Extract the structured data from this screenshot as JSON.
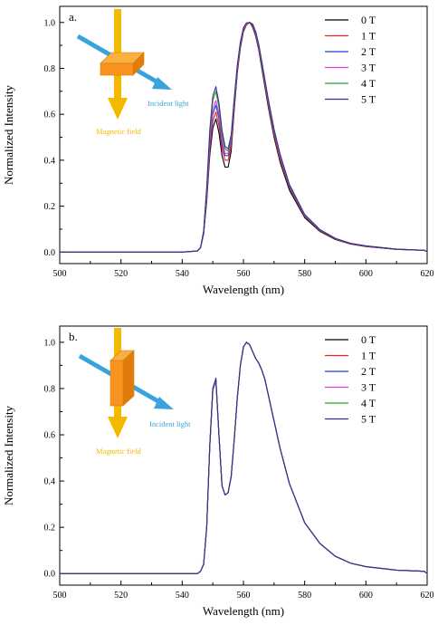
{
  "colors": {
    "text": "#000000",
    "frame": "#000000",
    "incident_light": "#3aa3dc",
    "magnetic_field": "#f5b800",
    "sample": "#f7931e"
  },
  "chart_data": [
    {
      "type": "line",
      "panel_label": "a.",
      "xlabel": "Wavelength (nm)",
      "ylabel": "Normalized Intensity",
      "xlim": [
        500,
        620
      ],
      "ylim": [
        -0.05,
        1.07
      ],
      "xticks": [
        "500",
        "520",
        "540",
        "560",
        "580",
        "600",
        "620"
      ],
      "yticks": [
        "0.0",
        "0.2",
        "0.4",
        "0.6",
        "0.8",
        "1.0"
      ],
      "legend_position": "top-right",
      "inset": {
        "incident_light_label": "Incident light",
        "magnetic_field_label": "Magnetic field",
        "icons": [
          "sample-cuboid",
          "incident-light-arrow",
          "magnetic-field-arrow"
        ]
      },
      "series": [
        {
          "name": "0 T",
          "color": "#000000",
          "x": [
            500,
            540,
            545,
            546,
            547,
            548,
            549,
            550,
            551,
            552,
            553,
            554,
            555,
            556,
            557,
            558,
            559,
            560,
            561,
            562,
            563,
            564,
            565,
            566,
            568,
            570,
            572,
            575,
            580,
            585,
            590,
            595,
            600,
            610,
            619,
            620
          ],
          "y": [
            0.0,
            0.0,
            0.005,
            0.02,
            0.08,
            0.22,
            0.42,
            0.54,
            0.58,
            0.52,
            0.42,
            0.37,
            0.37,
            0.44,
            0.62,
            0.78,
            0.89,
            0.96,
            0.99,
            1.0,
            0.98,
            0.94,
            0.88,
            0.8,
            0.64,
            0.5,
            0.39,
            0.27,
            0.15,
            0.09,
            0.055,
            0.035,
            0.024,
            0.012,
            0.008,
            0.002
          ]
        },
        {
          "name": "1 T",
          "color": "#e8262b",
          "x": [
            500,
            540,
            545,
            546,
            547,
            548,
            549,
            550,
            551,
            552,
            553,
            554,
            555,
            556,
            557,
            558,
            559,
            560,
            561,
            562,
            563,
            564,
            565,
            566,
            568,
            570,
            572,
            575,
            580,
            585,
            590,
            595,
            600,
            610,
            619,
            620
          ],
          "y": [
            0.0,
            0.0,
            0.005,
            0.02,
            0.08,
            0.23,
            0.44,
            0.57,
            0.61,
            0.55,
            0.45,
            0.4,
            0.4,
            0.46,
            0.63,
            0.79,
            0.9,
            0.965,
            0.992,
            1.0,
            0.985,
            0.945,
            0.885,
            0.81,
            0.65,
            0.51,
            0.4,
            0.28,
            0.155,
            0.093,
            0.057,
            0.036,
            0.025,
            0.012,
            0.008,
            0.002
          ]
        },
        {
          "name": "2 T",
          "color": "#1f3fd6",
          "x": [
            500,
            540,
            545,
            546,
            547,
            548,
            549,
            550,
            551,
            552,
            553,
            554,
            555,
            556,
            557,
            558,
            559,
            560,
            561,
            562,
            563,
            564,
            565,
            566,
            568,
            570,
            572,
            575,
            580,
            585,
            590,
            595,
            600,
            610,
            619,
            620
          ],
          "y": [
            0.0,
            0.0,
            0.005,
            0.02,
            0.08,
            0.24,
            0.46,
            0.6,
            0.64,
            0.58,
            0.47,
            0.42,
            0.42,
            0.48,
            0.64,
            0.8,
            0.905,
            0.97,
            0.995,
            1.0,
            0.99,
            0.95,
            0.89,
            0.815,
            0.66,
            0.52,
            0.41,
            0.285,
            0.158,
            0.095,
            0.058,
            0.037,
            0.026,
            0.013,
            0.008,
            0.002
          ]
        },
        {
          "name": "3 T",
          "color": "#e040d0",
          "x": [
            500,
            540,
            545,
            546,
            547,
            548,
            549,
            550,
            551,
            552,
            553,
            554,
            555,
            556,
            557,
            558,
            559,
            560,
            561,
            562,
            563,
            564,
            565,
            566,
            568,
            570,
            572,
            575,
            580,
            585,
            590,
            595,
            600,
            610,
            619,
            620
          ],
          "y": [
            0.0,
            0.0,
            0.005,
            0.02,
            0.09,
            0.25,
            0.48,
            0.62,
            0.66,
            0.6,
            0.49,
            0.43,
            0.43,
            0.49,
            0.65,
            0.8,
            0.905,
            0.97,
            0.995,
            1.0,
            0.99,
            0.955,
            0.895,
            0.82,
            0.665,
            0.525,
            0.415,
            0.29,
            0.16,
            0.096,
            0.059,
            0.037,
            0.026,
            0.013,
            0.008,
            0.002
          ]
        },
        {
          "name": "4 T",
          "color": "#2ca02c",
          "x": [
            500,
            540,
            545,
            546,
            547,
            548,
            549,
            550,
            551,
            552,
            553,
            554,
            555,
            556,
            557,
            558,
            559,
            560,
            561,
            562,
            563,
            564,
            565,
            566,
            568,
            570,
            572,
            575,
            580,
            585,
            590,
            595,
            600,
            610,
            619,
            620
          ],
          "y": [
            0.0,
            0.0,
            0.005,
            0.02,
            0.09,
            0.27,
            0.51,
            0.66,
            0.7,
            0.63,
            0.51,
            0.45,
            0.44,
            0.5,
            0.66,
            0.81,
            0.91,
            0.975,
            0.997,
            1.0,
            0.992,
            0.958,
            0.9,
            0.825,
            0.67,
            0.53,
            0.42,
            0.292,
            0.162,
            0.097,
            0.06,
            0.038,
            0.027,
            0.013,
            0.008,
            0.002
          ]
        },
        {
          "name": "5 T",
          "color": "#3b2e8f",
          "x": [
            500,
            540,
            545,
            546,
            547,
            548,
            549,
            550,
            551,
            552,
            553,
            554,
            555,
            556,
            557,
            558,
            559,
            560,
            561,
            562,
            563,
            564,
            565,
            566,
            568,
            570,
            572,
            575,
            580,
            585,
            590,
            595,
            600,
            610,
            619,
            620
          ],
          "y": [
            0.0,
            0.0,
            0.005,
            0.02,
            0.09,
            0.28,
            0.53,
            0.68,
            0.72,
            0.65,
            0.53,
            0.46,
            0.45,
            0.51,
            0.67,
            0.815,
            0.915,
            0.977,
            0.998,
            1.0,
            0.993,
            0.96,
            0.905,
            0.83,
            0.675,
            0.535,
            0.425,
            0.295,
            0.164,
            0.098,
            0.06,
            0.038,
            0.027,
            0.013,
            0.008,
            0.002
          ]
        }
      ]
    },
    {
      "type": "line",
      "panel_label": "b.",
      "xlabel": "Wavelength (nm)",
      "ylabel": "Normalized Intensity",
      "xlim": [
        500,
        620
      ],
      "ylim": [
        -0.05,
        1.07
      ],
      "xticks": [
        "500",
        "520",
        "540",
        "560",
        "580",
        "600",
        "620"
      ],
      "yticks": [
        "0.0",
        "0.2",
        "0.4",
        "0.6",
        "0.8",
        "1.0"
      ],
      "legend_position": "top-right",
      "inset": {
        "incident_light_label": "Incident light",
        "magnetic_field_label": "Magnetic field",
        "icons": [
          "sample-cuboid",
          "incident-light-arrow",
          "magnetic-field-arrow"
        ]
      },
      "series": [
        {
          "name": "0 T",
          "color": "#000000",
          "x": [
            500,
            545,
            546,
            547,
            548,
            549,
            550,
            551,
            552,
            553,
            554,
            555,
            556,
            557,
            558,
            559,
            560,
            561,
            562,
            563,
            564,
            565,
            566,
            567,
            568,
            570,
            572,
            575,
            580,
            585,
            590,
            595,
            600,
            610,
            619,
            620
          ],
          "y": [
            0.0,
            0.0,
            0.01,
            0.04,
            0.2,
            0.55,
            0.8,
            0.84,
            0.6,
            0.38,
            0.34,
            0.35,
            0.42,
            0.58,
            0.76,
            0.9,
            0.98,
            1.0,
            0.99,
            0.96,
            0.93,
            0.91,
            0.88,
            0.84,
            0.78,
            0.66,
            0.54,
            0.39,
            0.22,
            0.13,
            0.075,
            0.045,
            0.03,
            0.015,
            0.01,
            0.0
          ]
        },
        {
          "name": "1 T",
          "color": "#e8262b",
          "x": [
            500,
            545,
            546,
            547,
            548,
            549,
            550,
            551,
            552,
            553,
            554,
            555,
            556,
            557,
            558,
            559,
            560,
            561,
            562,
            563,
            564,
            565,
            566,
            567,
            568,
            570,
            572,
            575,
            580,
            585,
            590,
            595,
            600,
            610,
            619,
            620
          ],
          "y": [
            0.0,
            0.0,
            0.01,
            0.04,
            0.2,
            0.55,
            0.79,
            0.835,
            0.6,
            0.38,
            0.34,
            0.35,
            0.42,
            0.58,
            0.76,
            0.9,
            0.98,
            1.0,
            0.99,
            0.96,
            0.93,
            0.91,
            0.88,
            0.84,
            0.78,
            0.66,
            0.54,
            0.39,
            0.22,
            0.13,
            0.075,
            0.045,
            0.03,
            0.015,
            0.01,
            0.0
          ]
        },
        {
          "name": "2 T",
          "color": "#1f3fd6",
          "x": [
            500,
            545,
            546,
            547,
            548,
            549,
            550,
            551,
            552,
            553,
            554,
            555,
            556,
            557,
            558,
            559,
            560,
            561,
            562,
            563,
            564,
            565,
            566,
            567,
            568,
            570,
            572,
            575,
            580,
            585,
            590,
            595,
            600,
            610,
            619,
            620
          ],
          "y": [
            0.0,
            0.0,
            0.01,
            0.04,
            0.2,
            0.55,
            0.8,
            0.84,
            0.6,
            0.38,
            0.34,
            0.35,
            0.42,
            0.58,
            0.76,
            0.9,
            0.98,
            1.0,
            0.99,
            0.96,
            0.93,
            0.91,
            0.88,
            0.84,
            0.78,
            0.66,
            0.54,
            0.39,
            0.22,
            0.13,
            0.075,
            0.045,
            0.03,
            0.015,
            0.01,
            0.0
          ]
        },
        {
          "name": "3 T",
          "color": "#e040d0",
          "x": [
            500,
            545,
            546,
            547,
            548,
            549,
            550,
            551,
            552,
            553,
            554,
            555,
            556,
            557,
            558,
            559,
            560,
            561,
            562,
            563,
            564,
            565,
            566,
            567,
            568,
            570,
            572,
            575,
            580,
            585,
            590,
            595,
            600,
            610,
            619,
            620
          ],
          "y": [
            0.0,
            0.0,
            0.01,
            0.04,
            0.2,
            0.55,
            0.79,
            0.835,
            0.6,
            0.38,
            0.34,
            0.35,
            0.42,
            0.58,
            0.76,
            0.9,
            0.98,
            1.0,
            0.99,
            0.96,
            0.93,
            0.91,
            0.88,
            0.84,
            0.78,
            0.66,
            0.54,
            0.39,
            0.22,
            0.13,
            0.075,
            0.045,
            0.03,
            0.015,
            0.01,
            0.0
          ]
        },
        {
          "name": "4 T",
          "color": "#2ca02c",
          "x": [
            500,
            545,
            546,
            547,
            548,
            549,
            550,
            551,
            552,
            553,
            554,
            555,
            556,
            557,
            558,
            559,
            560,
            561,
            562,
            563,
            564,
            565,
            566,
            567,
            568,
            570,
            572,
            575,
            580,
            585,
            590,
            595,
            600,
            610,
            619,
            620
          ],
          "y": [
            0.0,
            0.0,
            0.01,
            0.04,
            0.2,
            0.55,
            0.8,
            0.84,
            0.6,
            0.38,
            0.34,
            0.35,
            0.42,
            0.58,
            0.76,
            0.9,
            0.98,
            1.0,
            0.99,
            0.96,
            0.93,
            0.91,
            0.88,
            0.84,
            0.78,
            0.66,
            0.54,
            0.39,
            0.22,
            0.13,
            0.075,
            0.045,
            0.03,
            0.015,
            0.01,
            0.0
          ]
        },
        {
          "name": "5 T",
          "color": "#3b2e8f",
          "x": [
            500,
            545,
            546,
            547,
            548,
            549,
            550,
            551,
            552,
            553,
            554,
            555,
            556,
            557,
            558,
            559,
            560,
            561,
            562,
            563,
            564,
            565,
            566,
            567,
            568,
            570,
            572,
            575,
            580,
            585,
            590,
            595,
            600,
            610,
            619,
            620
          ],
          "y": [
            0.0,
            0.0,
            0.01,
            0.04,
            0.2,
            0.55,
            0.8,
            0.845,
            0.6,
            0.38,
            0.34,
            0.35,
            0.42,
            0.58,
            0.76,
            0.9,
            0.98,
            1.0,
            0.99,
            0.96,
            0.93,
            0.91,
            0.88,
            0.84,
            0.78,
            0.66,
            0.54,
            0.39,
            0.22,
            0.13,
            0.075,
            0.045,
            0.03,
            0.015,
            0.01,
            0.0
          ]
        }
      ]
    }
  ]
}
